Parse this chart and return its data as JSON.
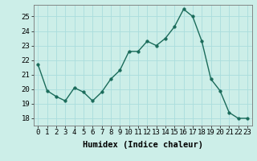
{
  "x": [
    0,
    1,
    2,
    3,
    4,
    5,
    6,
    7,
    8,
    9,
    10,
    11,
    12,
    13,
    14,
    15,
    16,
    17,
    18,
    19,
    20,
    21,
    22,
    23
  ],
  "y": [
    21.7,
    19.9,
    19.5,
    19.2,
    20.1,
    19.8,
    19.2,
    19.8,
    20.7,
    21.3,
    22.6,
    22.6,
    23.3,
    23.0,
    23.5,
    24.3,
    25.5,
    25.0,
    23.3,
    20.7,
    19.9,
    18.4,
    18.0,
    18.0
  ],
  "line_color": "#1a6b5a",
  "marker_color": "#1a6b5a",
  "bg_color": "#cceee8",
  "grid_color": "#aadddd",
  "xlabel": "Humidex (Indice chaleur)",
  "ylim": [
    17.5,
    25.8
  ],
  "xlim": [
    -0.5,
    23.5
  ],
  "yticks": [
    18,
    19,
    20,
    21,
    22,
    23,
    24,
    25
  ],
  "xticks": [
    0,
    1,
    2,
    3,
    4,
    5,
    6,
    7,
    8,
    9,
    10,
    11,
    12,
    13,
    14,
    15,
    16,
    17,
    18,
    19,
    20,
    21,
    22,
    23
  ],
  "tick_fontsize": 6.5,
  "xlabel_fontsize": 7.5,
  "linewidth": 1.0,
  "markersize": 2.5
}
